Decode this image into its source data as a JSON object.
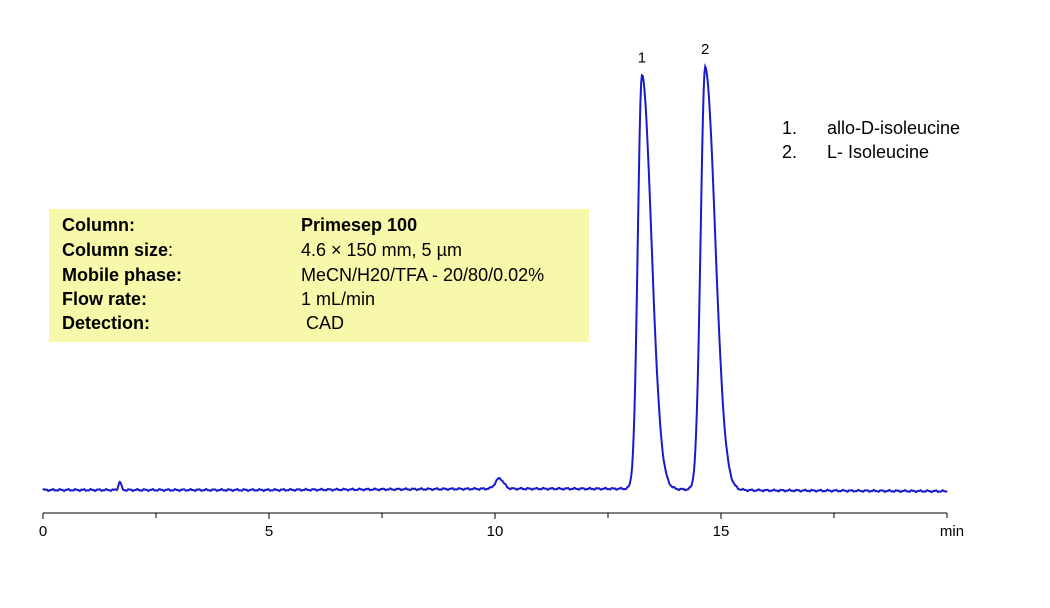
{
  "chart_data": {
    "type": "line",
    "xlabel": "min",
    "ylabel": "",
    "xlim": [
      0,
      20
    ],
    "x_ticks_major": [
      0,
      5,
      10,
      15
    ],
    "x_ticks_minor": [
      2.5,
      7.5,
      12.5,
      17.5,
      20
    ],
    "grid": false,
    "line_color": "#1a1acd",
    "baseline": 0.0,
    "drift": [
      [
        0,
        0.0
      ],
      [
        5,
        0.0
      ],
      [
        10,
        0.3
      ],
      [
        13,
        0.3
      ],
      [
        16,
        -0.1
      ],
      [
        20,
        -0.3
      ]
    ],
    "events": [
      {
        "rt": 1.7,
        "height": 2.0,
        "sigma": 0.03
      },
      {
        "rt": 10.1,
        "height": 2.5,
        "sigma": 0.09
      }
    ],
    "peaks": [
      {
        "label": "1",
        "rt": 13.25,
        "height": 100,
        "sigma_left": 0.09,
        "sigma_right": 0.21
      },
      {
        "label": "2",
        "rt": 14.65,
        "height": 102,
        "sigma_left": 0.1,
        "sigma_right": 0.22
      }
    ]
  },
  "legend": [
    {
      "num": "1.",
      "name": "allo-D-isoleucine"
    },
    {
      "num": "2.",
      "name": "L- Isoleucine"
    }
  ],
  "conditions": [
    {
      "key": "Column",
      "colon_bold": true,
      "value": "Primesep 100",
      "value_bold": true
    },
    {
      "key": "Column size",
      "colon_bold": false,
      "value": "4.6 × 150 mm, 5 µm",
      "value_bold": false
    },
    {
      "key": "Mobile phase",
      "colon_bold": true,
      "value": "MeCN/H20/TFA - 20/80/0.02%",
      "value_bold": false
    },
    {
      "key": "Flow rate",
      "colon_bold": true,
      "value": "1 mL/min",
      "value_bold": false
    },
    {
      "key": "Detection",
      "colon_bold": true,
      "value": " CAD",
      "value_bold": false
    }
  ]
}
